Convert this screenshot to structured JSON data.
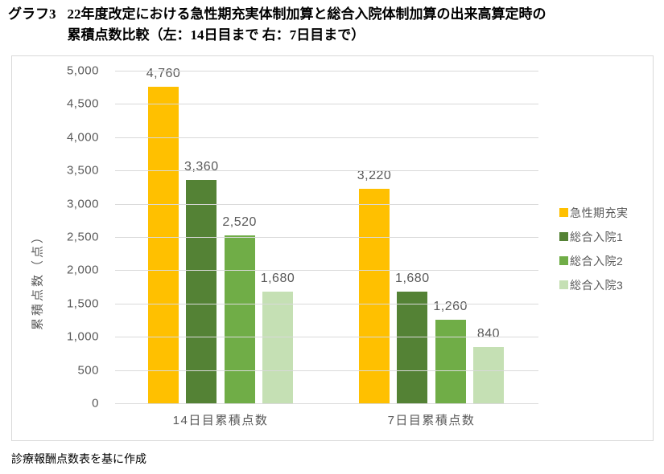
{
  "title": {
    "prefix": "グラフ3",
    "line1": "22年度改定における急性期充実体制加算と総合入院体制加算の出来高算定時の",
    "line2": "累積点数比較（左：14日目まで 右：7日目まで）"
  },
  "footer": {
    "source_note": "診療報酬点数表を基に作成"
  },
  "chart_data": {
    "type": "bar",
    "title": "",
    "xlabel": "",
    "ylabel": "累積点数（点）",
    "ylim": [
      0,
      5000
    ],
    "ytick_interval": 500,
    "ytick_labels": [
      "5,000",
      "4,500",
      "4,000",
      "3,500",
      "3,000",
      "2,500",
      "2,000",
      "1,500",
      "1,000",
      "500",
      "0"
    ],
    "categories": [
      "14日目累積点数",
      "7日目累積点数"
    ],
    "series": [
      {
        "name": "急性期充実",
        "color": "#FFC000",
        "values": [
          4760,
          3220
        ],
        "labels": [
          "4,760",
          "3,220"
        ]
      },
      {
        "name": "総合入院1",
        "color": "#548235",
        "values": [
          3360,
          1680
        ],
        "labels": [
          "3,360",
          "1,680"
        ]
      },
      {
        "name": "総合入院2",
        "color": "#70AD47",
        "values": [
          2520,
          1260
        ],
        "labels": [
          "2,520",
          "1,260"
        ]
      },
      {
        "name": "総合入院3",
        "color": "#C5E0B4",
        "values": [
          1680,
          840
        ],
        "labels": [
          "1,680",
          "840"
        ]
      }
    ],
    "grid": true,
    "legend_position": "right",
    "colors": {
      "gridline": "#D9D9D9",
      "frame_border": "#D9D9D9",
      "axis_text": "#595959"
    }
  }
}
